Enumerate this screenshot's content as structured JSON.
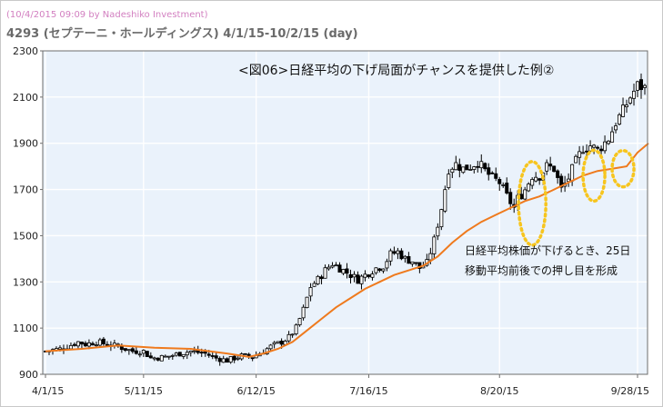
{
  "header": {
    "timestamp": "(10/4/2015 09:09 by Nadeshiko Investment)",
    "title": "4293 (セプテーニ・ホールディングス)  4/1/15-10/2/15 (day)"
  },
  "colors": {
    "plot_bg": "#eaf2fb",
    "candle": "#000000",
    "ma_line": "#ef7a1d",
    "highlight": "#f7c51e"
  },
  "chart_data": {
    "type": "candlestick",
    "title": "<図06>日経平均の下げ局面がチャンスを提供した例②",
    "xlabel": "",
    "ylabel": "",
    "ylim": [
      900,
      2300
    ],
    "yticks": [
      900,
      1100,
      1300,
      1500,
      1700,
      1900,
      2100,
      2300
    ],
    "xticks": [
      "4/1/15",
      "5/11/15",
      "6/12/15",
      "7/16/15",
      "8/20/15",
      "9/28/15"
    ],
    "grid": true,
    "annotation": [
      "日経平均株価が下げるとき、25日",
      "移動平均前後での押し目を形成"
    ],
    "series": [
      {
        "type": "candlestick",
        "anchor_values": [
          [
            0,
            1000
          ],
          [
            4,
            1010
          ],
          [
            6,
            1020
          ],
          [
            9,
            1040
          ],
          [
            11,
            1030
          ],
          [
            14,
            1040
          ],
          [
            17,
            1030
          ],
          [
            20,
            1020
          ],
          [
            24,
            1000
          ],
          [
            27,
            1000
          ],
          [
            29,
            970
          ],
          [
            33,
            975
          ],
          [
            37,
            990
          ],
          [
            40,
            1000
          ],
          [
            44,
            990
          ],
          [
            47,
            970
          ],
          [
            50,
            960
          ],
          [
            54,
            980
          ],
          [
            57,
            975
          ],
          [
            60,
            1000
          ],
          [
            62,
            1020
          ],
          [
            65,
            1040
          ],
          [
            67,
            1060
          ],
          [
            69,
            1100
          ],
          [
            71,
            1180
          ],
          [
            73,
            1280
          ],
          [
            75,
            1310
          ],
          [
            77,
            1350
          ],
          [
            79,
            1380
          ],
          [
            81,
            1360
          ],
          [
            84,
            1330
          ],
          [
            86,
            1310
          ],
          [
            89,
            1340
          ],
          [
            91,
            1360
          ],
          [
            93,
            1370
          ],
          [
            95,
            1420
          ],
          [
            97,
            1430
          ],
          [
            99,
            1400
          ],
          [
            101,
            1390
          ],
          [
            103,
            1360
          ],
          [
            105,
            1380
          ],
          [
            107,
            1480
          ],
          [
            109,
            1620
          ],
          [
            111,
            1790
          ],
          [
            113,
            1810
          ],
          [
            115,
            1790
          ],
          [
            117,
            1800
          ],
          [
            119,
            1820
          ],
          [
            121,
            1780
          ],
          [
            123,
            1750
          ],
          [
            125,
            1730
          ],
          [
            127,
            1670
          ],
          [
            129,
            1620
          ],
          [
            130,
            1660
          ],
          [
            132,
            1700
          ],
          [
            134,
            1760
          ],
          [
            136,
            1760
          ],
          [
            138,
            1800
          ],
          [
            140,
            1790
          ],
          [
            142,
            1700
          ],
          [
            144,
            1750
          ],
          [
            146,
            1820
          ],
          [
            148,
            1880
          ],
          [
            150,
            1890
          ],
          [
            152,
            1870
          ],
          [
            155,
            1920
          ],
          [
            157,
            1990
          ],
          [
            159,
            2040
          ],
          [
            161,
            2100
          ],
          [
            163,
            2150
          ],
          [
            165,
            2140
          ]
        ]
      },
      {
        "name": "25日移動平均",
        "type": "line",
        "values": [
          [
            0,
            1000
          ],
          [
            10,
            1010
          ],
          [
            20,
            1025
          ],
          [
            30,
            1015
          ],
          [
            40,
            1010
          ],
          [
            50,
            990
          ],
          [
            56,
            975
          ],
          [
            60,
            990
          ],
          [
            64,
            1010
          ],
          [
            68,
            1040
          ],
          [
            72,
            1090
          ],
          [
            76,
            1140
          ],
          [
            80,
            1190
          ],
          [
            84,
            1230
          ],
          [
            88,
            1270
          ],
          [
            92,
            1300
          ],
          [
            96,
            1330
          ],
          [
            100,
            1350
          ],
          [
            104,
            1370
          ],
          [
            108,
            1410
          ],
          [
            112,
            1470
          ],
          [
            116,
            1520
          ],
          [
            120,
            1560
          ],
          [
            124,
            1590
          ],
          [
            128,
            1620
          ],
          [
            132,
            1650
          ],
          [
            136,
            1670
          ],
          [
            140,
            1700
          ],
          [
            144,
            1730
          ],
          [
            148,
            1760
          ],
          [
            152,
            1780
          ],
          [
            156,
            1790
          ],
          [
            160,
            1800
          ],
          [
            163,
            1860
          ],
          [
            166,
            1900
          ]
        ]
      }
    ]
  }
}
